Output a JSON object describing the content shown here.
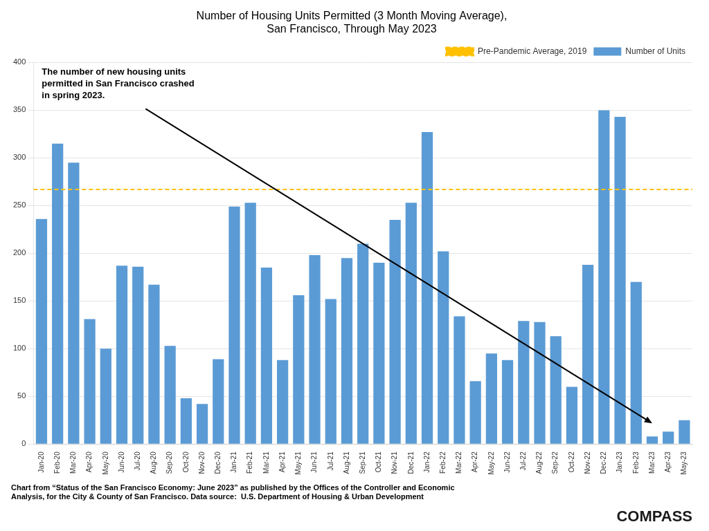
{
  "chart_data": {
    "type": "bar",
    "title": "Number of Housing Units Permitted (3 Month Moving Average),\nSan Francisco, Through May 2023",
    "categories": [
      "Jan-20",
      "Feb-20",
      "Mar-20",
      "Apr-20",
      "May-20",
      "Jun-20",
      "Jul-20",
      "Aug-20",
      "Sep-20",
      "Oct-20",
      "Nov-20",
      "Dec-20",
      "Jan-21",
      "Feb-21",
      "Mar-21",
      "Apr-21",
      "May-21",
      "Jun-21",
      "Jul-21",
      "Aug-21",
      "Sep-21",
      "Oct-21",
      "Nov-21",
      "Dec-21",
      "Jan-22",
      "Feb-22",
      "Mar-22",
      "Apr-22",
      "May-22",
      "Jun-22",
      "Jul-22",
      "Aug-22",
      "Sep-22",
      "Oct-22",
      "Nov-22",
      "Dec-22",
      "Jan-23",
      "Feb-23",
      "Mar-23",
      "Apr-23",
      "May-23"
    ],
    "series": [
      {
        "name": "Number of Units",
        "color": "#5B9BD5",
        "values": [
          236,
          315,
          295,
          131,
          100,
          187,
          186,
          167,
          103,
          48,
          42,
          89,
          249,
          253,
          185,
          88,
          156,
          198,
          152,
          195,
          210,
          190,
          235,
          253,
          327,
          202,
          134,
          66,
          95,
          88,
          129,
          128,
          113,
          60,
          188,
          350,
          343,
          170,
          8,
          13,
          25
        ]
      }
    ],
    "reference_line": {
      "name": "Pre-Pandemic Average, 2019",
      "value": 267,
      "color": "#FFC000",
      "line_style": "dashed"
    },
    "annotations": [
      {
        "text": "The number of new housing units\npermitted in San Francisco crashed\nin spring 2023."
      },
      {
        "text": "COMPASS"
      }
    ],
    "footnote": "Chart from “Status of the San Francisco Economy: June 2023” as published by the Offices of the Controller and Economic\nAnalysis, for the City & County of San Francisco. Data source:  U.S. Department of Housing & Urban Development",
    "ylim": [
      0,
      400
    ],
    "yticks": [
      0,
      50,
      100,
      150,
      200,
      250,
      300,
      350,
      400
    ],
    "grid": true,
    "legend": "upper right"
  }
}
